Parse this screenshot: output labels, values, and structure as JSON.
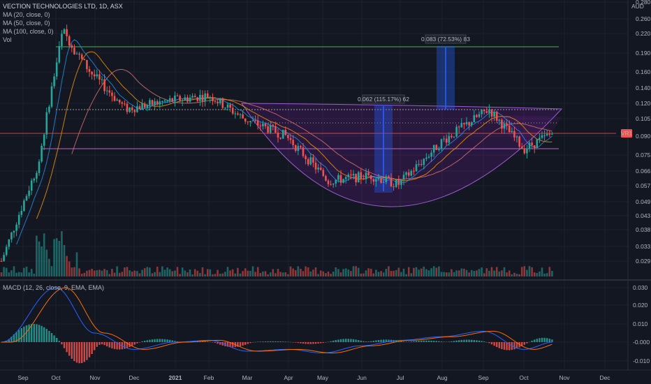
{
  "header": {
    "title": "VECTION TECHNOLOGIES LTD, 1D, ASX",
    "ma_labels": [
      "MA (20, close, 0)",
      "MA (50, close, 0)",
      "MA (100, close, 0)"
    ],
    "vol_label": "Vol",
    "currency": "AUD"
  },
  "macd": {
    "label": "MACD (12, 26, close, 9, EMA, EMA)",
    "ticks": [
      "0.030",
      "0.020",
      "0.010",
      "-0.000",
      "-0.010"
    ]
  },
  "price_badge": "VR1",
  "annotations": {
    "measure_1": "0.062 (115.17%) 62",
    "measure_2": "0.083 (72.53%) 83"
  },
  "colors": {
    "background": "#131722",
    "up": "#26a69a",
    "down": "#ef5350",
    "pattern_fill": "#7b1fa2",
    "target_line": "#4caf50",
    "measure_fill": "#2962ff",
    "ma20": "#2196f3",
    "ma50": "#ff9800",
    "ma100": "#e57373",
    "macd_line": "#2962ff",
    "signal_line": "#ff6d00"
  },
  "chart_data": {
    "type": "candlestick",
    "x_ticks": [
      "Sep",
      "Oct",
      "Nov",
      "Dec",
      "2021",
      "Feb",
      "Mar",
      "Apr",
      "May",
      "Jun",
      "Jul",
      "Aug",
      "Sep",
      "Oct",
      "Nov",
      "Dec"
    ],
    "y_ticks": [
      "0.280",
      "0.260",
      "0.220",
      "0.190",
      "0.160",
      "0.140",
      "0.120",
      "0.105",
      "0.090",
      "0.075",
      "0.066",
      "0.057",
      "0.049",
      "0.043",
      "0.038",
      "0.033",
      "0.029"
    ],
    "y_scale": "log",
    "price_series": [
      [
        "Sep",
        0.029
      ],
      [
        "mid Sep",
        0.045
      ],
      [
        "late Sep",
        0.07
      ],
      [
        "Oct",
        0.13
      ],
      [
        "mid Oct",
        0.235
      ],
      [
        "late Oct",
        0.19
      ],
      [
        "Nov",
        0.16
      ],
      [
        "Dec",
        0.115
      ],
      [
        "2021",
        0.125
      ],
      [
        "Feb",
        0.13
      ],
      [
        "Mar",
        0.105
      ],
      [
        "Apr",
        0.09
      ],
      [
        "May",
        0.06
      ],
      [
        "Jun",
        0.063
      ],
      [
        "Jul",
        0.058
      ],
      [
        "Aug",
        0.086
      ],
      [
        "Sep",
        0.115
      ],
      [
        "Oct",
        0.08
      ],
      [
        "late Oct",
        0.092
      ]
    ],
    "levels": {
      "target": 0.2,
      "resistance": 0.113,
      "dotted": 0.099,
      "support": 0.08,
      "current": 0.09
    },
    "macd_series": [
      [
        "Sep",
        0.0
      ],
      [
        "Oct",
        0.03
      ],
      [
        "Nov",
        0.005
      ],
      [
        "Dec",
        -0.004
      ],
      [
        "2021",
        0.0
      ],
      [
        "Feb",
        0.001
      ],
      [
        "Mar",
        -0.005
      ],
      [
        "Apr",
        -0.004
      ],
      [
        "May",
        -0.006
      ],
      [
        "Jun",
        -0.002
      ],
      [
        "Jul",
        0.001
      ],
      [
        "Aug",
        0.003
      ],
      [
        "Sep",
        0.006
      ],
      [
        "Oct",
        -0.004
      ],
      [
        "late Oct",
        0.0
      ]
    ]
  }
}
